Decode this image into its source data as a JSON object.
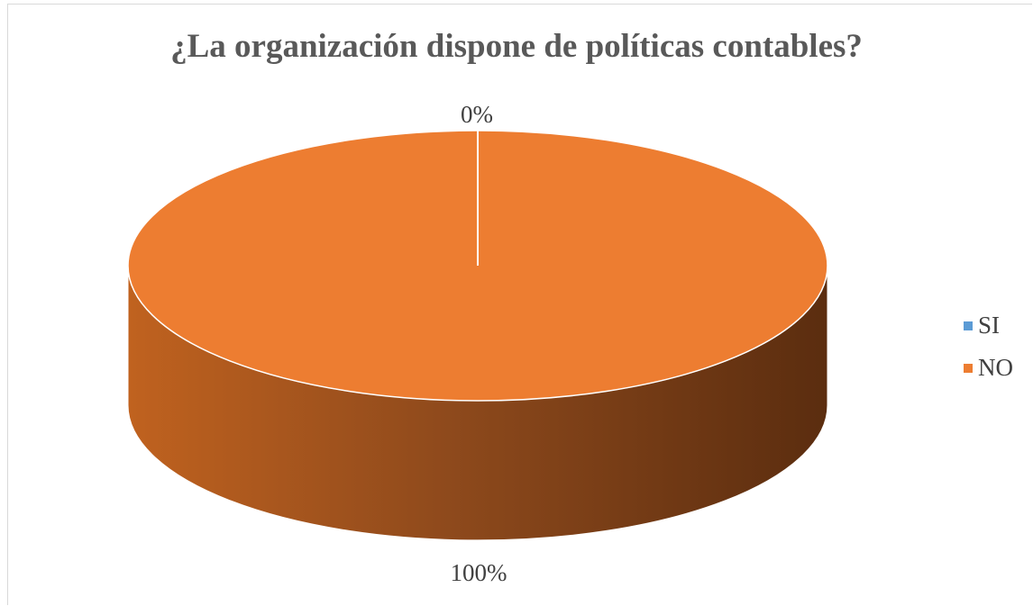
{
  "chart_data": {
    "type": "pie",
    "title": "¿La organización dispone de políticas contables?",
    "categories": [
      "SI",
      "NO"
    ],
    "values": [
      0,
      100
    ],
    "data_labels": [
      "0%",
      "100%"
    ],
    "colors": [
      "#5b9bd5",
      "#ed7d31"
    ],
    "legend_position": "right",
    "style": "3d"
  }
}
